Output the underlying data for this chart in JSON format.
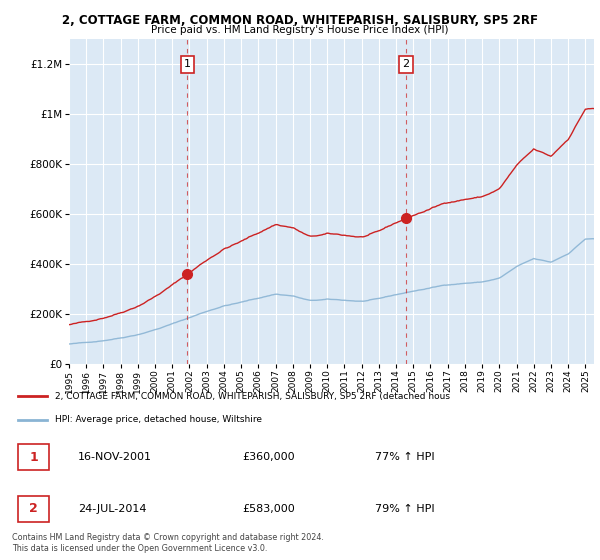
{
  "title1": "2, COTTAGE FARM, COMMON ROAD, WHITEPARISH, SALISBURY, SP5 2RF",
  "title2": "Price paid vs. HM Land Registry's House Price Index (HPI)",
  "legend_line1": "2, COTTAGE FARM, COMMON ROAD, WHITEPARISH, SALISBURY, SP5 2RF (detached hous",
  "legend_line2": "HPI: Average price, detached house, Wiltshire",
  "sale1_date": "16-NOV-2001",
  "sale1_price": "£360,000",
  "sale1_hpi": "77% ↑ HPI",
  "sale2_date": "24-JUL-2014",
  "sale2_price": "£583,000",
  "sale2_hpi": "79% ↑ HPI",
  "footer": "Contains HM Land Registry data © Crown copyright and database right 2024.\nThis data is licensed under the Open Government Licence v3.0.",
  "hpi_color": "#8ab4d4",
  "price_color": "#cc2222",
  "vline_color": "#cc2222",
  "plot_bg_color": "#dce9f5",
  "grid_color": "#ffffff",
  "sale1_x": 2001.88,
  "sale1_y": 360000,
  "sale2_x": 2014.56,
  "sale2_y": 583000,
  "ylim": [
    0,
    1300000
  ],
  "xlim_start": 1995,
  "xlim_end": 2025.5
}
